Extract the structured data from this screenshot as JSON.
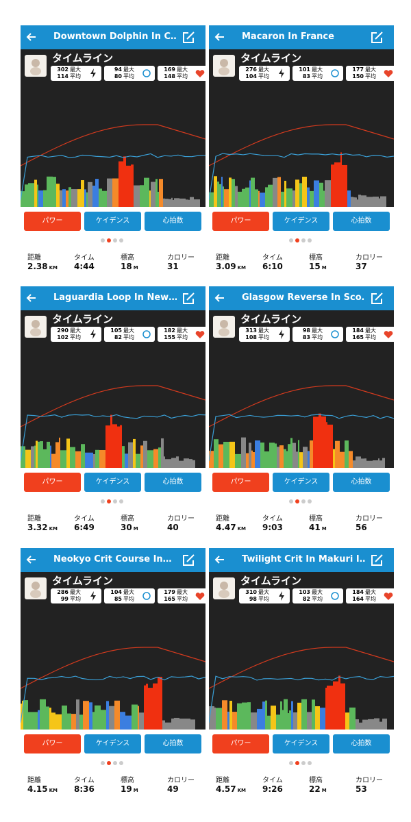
{
  "labels": {
    "timeline": "タイムライン",
    "max": "最大",
    "avg": "平均",
    "buttons": [
      "パワー",
      "ケイデンス",
      "心拍数"
    ],
    "summary": [
      "距離",
      "タイム",
      "標高",
      "カロリー"
    ],
    "units": {
      "km": "KM",
      "m": "M"
    }
  },
  "panels": [
    {
      "title": "Downtown Dolphin In C…",
      "power": {
        "max": 302,
        "avg": 114
      },
      "cadence": {
        "max": 94,
        "avg": 80
      },
      "heart_rate": {
        "max": 169,
        "avg": 148
      },
      "distance": 2.38,
      "time": "4:44",
      "elevation": 18,
      "calories": 31
    },
    {
      "title": "Macaron In France",
      "power": {
        "max": 276,
        "avg": 104
      },
      "cadence": {
        "max": 101,
        "avg": 83
      },
      "heart_rate": {
        "max": 177,
        "avg": 150
      },
      "distance": 3.09,
      "time": "6:10",
      "elevation": 15,
      "calories": 37
    },
    {
      "title": "Laguardia Loop In New…",
      "power": {
        "max": 290,
        "avg": 102
      },
      "cadence": {
        "max": 105,
        "avg": 82
      },
      "heart_rate": {
        "max": 182,
        "avg": 155
      },
      "distance": 3.32,
      "time": "6:49",
      "elevation": 30,
      "calories": 40
    },
    {
      "title": "Glasgow Reverse In Sco…",
      "power": {
        "max": 313,
        "avg": 108
      },
      "cadence": {
        "max": 98,
        "avg": 83
      },
      "heart_rate": {
        "max": 184,
        "avg": 165
      },
      "distance": 4.47,
      "time": "9:03",
      "elevation": 41,
      "calories": 56
    },
    {
      "title": "Neokyo Crit Course In…",
      "power": {
        "max": 286,
        "avg": 99
      },
      "cadence": {
        "max": 104,
        "avg": 85
      },
      "heart_rate": {
        "max": 179,
        "avg": 165
      },
      "distance": 4.15,
      "time": "8:36",
      "elevation": 19,
      "calories": 49
    },
    {
      "title": "Twilight Crit In Makuri I…",
      "power": {
        "max": 310,
        "avg": 98
      },
      "cadence": {
        "max": 103,
        "avg": 82
      },
      "heart_rate": {
        "max": 184,
        "avg": 164
      },
      "distance": 4.57,
      "time": "9:26",
      "elevation": 22,
      "calories": 53
    }
  ]
}
